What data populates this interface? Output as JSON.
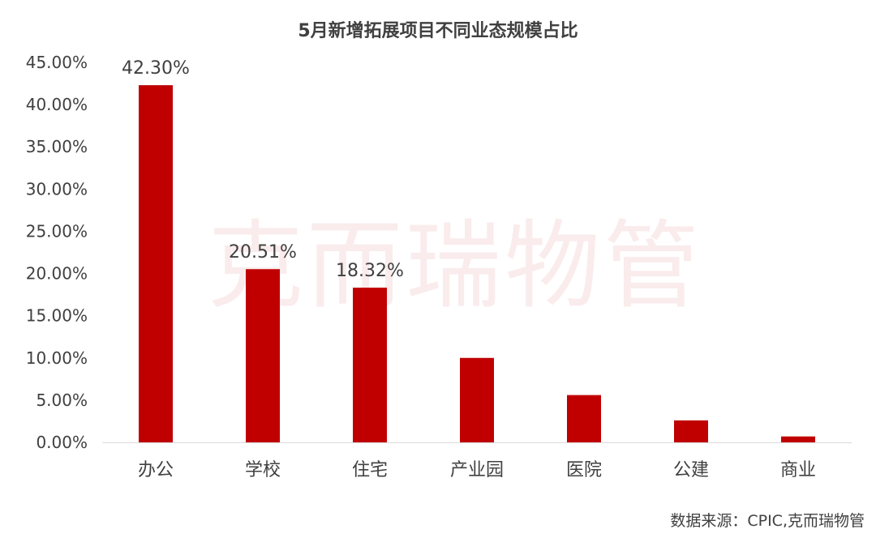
{
  "chart_data": {
    "type": "bar",
    "title": "5月新增拓展项目不同业态规模占比",
    "categories": [
      "办公",
      "学校",
      "住宅",
      "产业园",
      "医院",
      "公建",
      "商业"
    ],
    "values": [
      42.3,
      20.51,
      18.32,
      10.0,
      5.6,
      2.6,
      0.7
    ],
    "data_labels": [
      "42.30%",
      "20.51%",
      "18.32%",
      null,
      null,
      null,
      null
    ],
    "ylim": [
      0,
      45
    ],
    "yticks": [
      "0.00%",
      "5.00%",
      "10.00%",
      "15.00%",
      "20.00%",
      "25.00%",
      "30.00%",
      "35.00%",
      "40.00%",
      "45.00%"
    ],
    "xlabel": "",
    "ylabel": "",
    "grid": false,
    "bar_color": "#c00000"
  },
  "watermark": "克而瑞物管",
  "source": "数据来源：CPIC,克而瑞物管"
}
